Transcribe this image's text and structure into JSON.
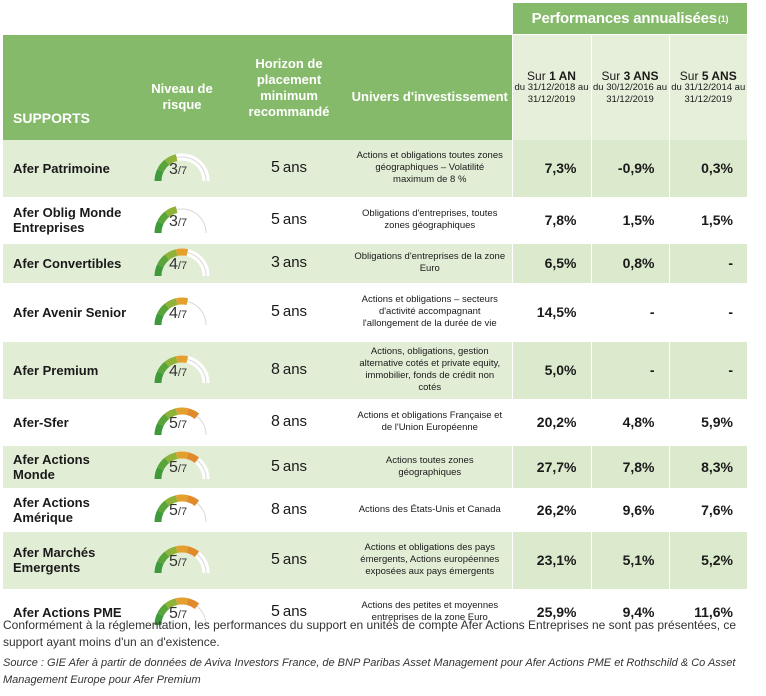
{
  "header": {
    "perf_title": "Performances annualisées",
    "perf_sup": "(1)",
    "supports": "SUPPORTS",
    "risk": "Niveau de risque",
    "horizon": "Horizon de placement minimum recommandé",
    "univers": "Univers d'investissement",
    "col1": {
      "prefix": "Sur",
      "bold": "1 AN",
      "range": "du 31/12/2018 au 31/12/2019"
    },
    "col3": {
      "prefix": "Sur",
      "bold": "3 ANS",
      "range": "du 30/12/2016 au 31/12/2019"
    },
    "col5": {
      "prefix": "Sur",
      "bold": "5 ANS",
      "range": "du 31/12/2014 au 31/12/2019"
    }
  },
  "colors": {
    "header_green": "#86ba6b",
    "row_tint": "#e2edd6",
    "gauge_green": "#3e9a3a",
    "gauge_orange": "#e39b2d",
    "gauge_red": "#c9412f"
  },
  "rows": [
    {
      "name": "Afer Patrimoine",
      "risk": 3,
      "risk_max": "7",
      "horizon": "5",
      "unit": "ans",
      "univers": "Actions et obligations toutes zones géographiques – Volatilité maximum de 8 %",
      "p1": "7,3%",
      "p3": "-0,9%",
      "p5": "0,3%"
    },
    {
      "name": "Afer Oblig Monde Entreprises",
      "risk": 3,
      "risk_max": "7",
      "horizon": "5",
      "unit": "ans",
      "univers": "Obligations d'entreprises, toutes zones géographiques",
      "p1": "7,8%",
      "p3": "1,5%",
      "p5": "1,5%"
    },
    {
      "name": "Afer Convertibles",
      "risk": 4,
      "risk_max": "7",
      "horizon": "3",
      "unit": "ans",
      "univers": "Obligations d'entreprises de la zone Euro",
      "p1": "6,5%",
      "p3": "0,8%",
      "p5": "-"
    },
    {
      "name": "Afer Avenir Senior",
      "risk": 4,
      "risk_max": "7",
      "horizon": "5",
      "unit": "ans",
      "univers": "Actions et obligations – secteurs d'activité accompagnant l'allongement de la durée de vie",
      "p1": "14,5%",
      "p3": "-",
      "p5": "-"
    },
    {
      "name": "Afer Premium",
      "risk": 4,
      "risk_max": "7",
      "horizon": "8",
      "unit": "ans",
      "univers": "Actions, obligations, gestion alternative cotés et private equity, immobilier, fonds de crédit non cotés",
      "p1": "5,0%",
      "p3": "-",
      "p5": "-"
    },
    {
      "name": "Afer-Sfer",
      "risk": 5,
      "risk_max": "7",
      "horizon": "8",
      "unit": "ans",
      "univers": "Actions et obligations Française et de l'Union Européenne",
      "p1": "20,2%",
      "p3": "4,8%",
      "p5": "5,9%"
    },
    {
      "name": "Afer Actions Monde",
      "risk": 5,
      "risk_max": "7",
      "horizon": "5",
      "unit": "ans",
      "univers": "Actions toutes zones géographiques",
      "p1": "27,7%",
      "p3": "7,8%",
      "p5": "8,3%"
    },
    {
      "name": "Afer Actions Amérique",
      "risk": 5,
      "risk_max": "7",
      "horizon": "8",
      "unit": "ans",
      "univers": "Actions des États-Unis et Canada",
      "p1": "26,2%",
      "p3": "9,6%",
      "p5": "7,6%"
    },
    {
      "name": "Afer Marchés Emergents",
      "risk": 5,
      "risk_max": "7",
      "horizon": "5",
      "unit": "ans",
      "univers": "Actions et obligations des pays émergents, Actions européennes exposées aux pays émergents",
      "p1": "23,1%",
      "p3": "5,1%",
      "p5": "5,2%"
    },
    {
      "name": "Afer Actions PME",
      "risk": 5,
      "risk_max": "7",
      "horizon": "5",
      "unit": "ans",
      "univers": "Actions des petites et moyennes entreprises de la zone Euro",
      "p1": "25,9%",
      "p3": "9,4%",
      "p5": "11,6%"
    }
  ],
  "footnote": "Conformément à la réglementation, les performances du support en unités de compte Afer Actions Entreprises ne sont pas présentées, ce support ayant moins d'un an d'existence.",
  "source": "Source : GIE Afer à partir de données de Aviva Investors France, de BNP Paribas Asset Management pour Afer Actions PME et Rothschild & Co Asset Management Europe pour Afer Premium"
}
